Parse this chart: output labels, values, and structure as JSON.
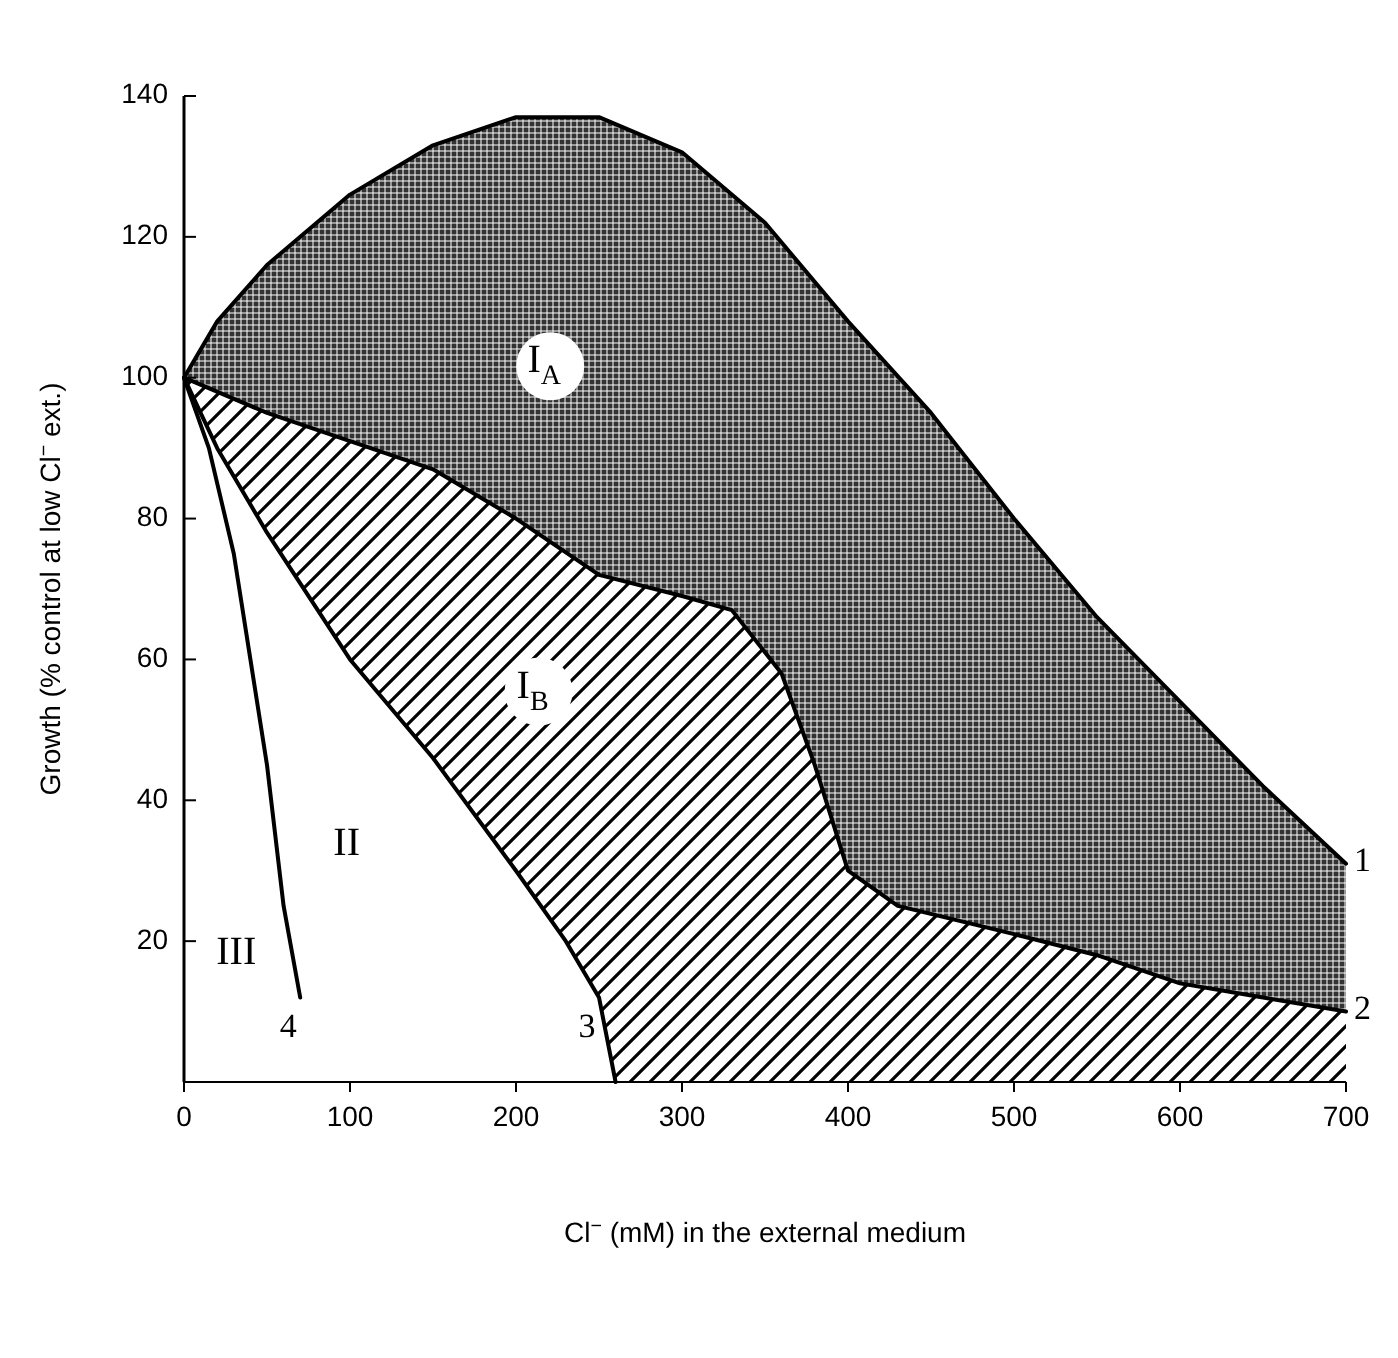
{
  "chart_data": {
    "type": "area",
    "xlabel": "Cl$^{−}$ (mM) in the external medium",
    "ylabel": "Growth (% control at low Cl$^{−}$ ext.)",
    "xlim": [
      0,
      700
    ],
    "xticks": [
      0,
      100,
      200,
      300,
      400,
      500,
      600,
      700
    ],
    "ylim": [
      0,
      140
    ],
    "yticks": [
      20,
      40,
      60,
      80,
      100,
      120,
      140
    ],
    "grid": false,
    "series": [
      {
        "name": "1",
        "color": "#333333",
        "x": [
          0,
          20,
          50,
          100,
          150,
          200,
          250,
          300,
          350,
          400,
          450,
          500,
          550,
          600,
          650,
          700
        ],
        "values": [
          100,
          108,
          116,
          126,
          133,
          137,
          137,
          132,
          122,
          108,
          95,
          80,
          66,
          54,
          42,
          31
        ]
      },
      {
        "name": "2",
        "color": "#999999",
        "x": [
          0,
          50,
          100,
          150,
          200,
          250,
          300,
          330,
          360,
          380,
          400,
          430,
          500,
          550,
          600,
          650,
          700
        ],
        "values": [
          100,
          95,
          91,
          87,
          80,
          72,
          69,
          67,
          58,
          45,
          30,
          25,
          21,
          18,
          14,
          12,
          10
        ]
      },
      {
        "name": "3",
        "color": "#ffffff",
        "x": [
          0,
          20,
          50,
          100,
          150,
          200,
          230,
          250,
          260
        ],
        "values": [
          100,
          90,
          78,
          60,
          46,
          30,
          20,
          12,
          0
        ]
      },
      {
        "name": "4",
        "type": "line",
        "color": "#000000",
        "x": [
          0,
          15,
          30,
          40,
          50,
          60,
          70
        ],
        "values": [
          100,
          90,
          75,
          60,
          45,
          25,
          12
        ]
      }
    ],
    "annotations": [
      "I$_{A}$",
      "I$_{B}$",
      "II",
      "III"
    ]
  }
}
